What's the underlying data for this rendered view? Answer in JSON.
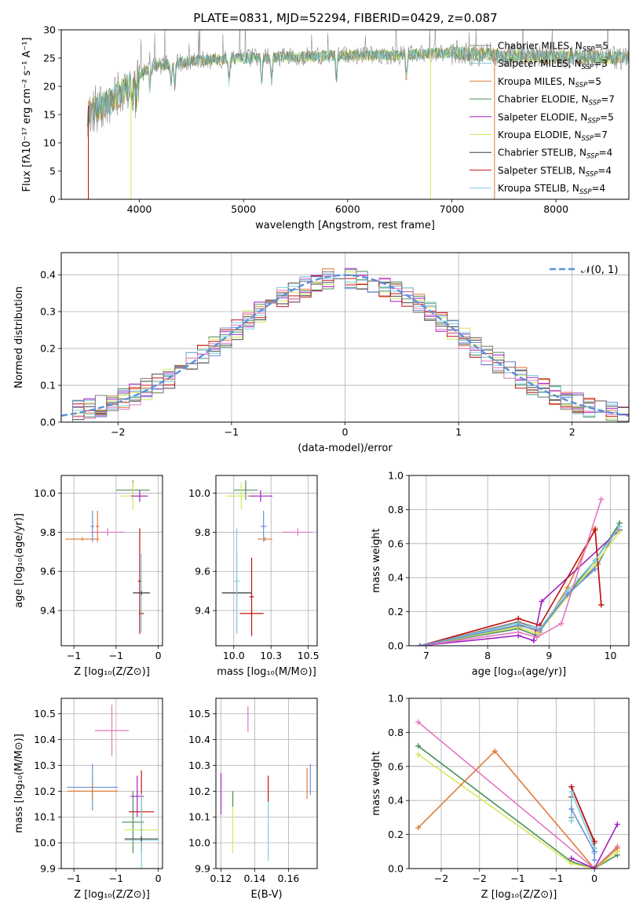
{
  "figure": {
    "title": "PLATE=0831, MJD=52294, FIBERID=0429, z=0.087"
  },
  "colors": {
    "Chabrier MILES": "#808080",
    "Salpeter MILES": "#7fbfbf",
    "Kroupa MILES": "#e07b39",
    "Chabrier ELODIE": "#4f8f5a",
    "Salpeter ELODIE": "#a020c0",
    "Kroupa ELODIE": "#d4e85a",
    "Chabrier STELIB": "#404040",
    "Salpeter STELIB": "#c01010",
    "Kroupa STELIB": "#7fd0dc",
    "extra_pink": "#e377c2",
    "extra_blue": "#6b8fd6",
    "gaussian": "#5b8fd9"
  },
  "chart_data": [
    {
      "id": "spectrum",
      "type": "line",
      "title": "PLATE=0831, MJD=52294, FIBERID=0429, z=0.087",
      "xlabel": "wavelength [Angstrom, rest frame]",
      "ylabel": "Flux [fλ10⁻¹⁷ erg cm⁻² s⁻¹ A⁻¹]",
      "xlim": [
        3250,
        8700
      ],
      "ylim": [
        0,
        30
      ],
      "xticks": [
        4000,
        5000,
        6000,
        7000,
        8000
      ],
      "yticks": [
        0,
        5,
        10,
        15,
        20,
        25,
        30
      ],
      "grid": false,
      "legend_position": "right",
      "legend": [
        {
          "label": "Chabrier MILES, N",
          "sub": "SSP",
          "tail": "=5",
          "color": "#808080"
        },
        {
          "label": "Salpeter MILES, N",
          "sub": "SSP",
          "tail": "=3",
          "color": "#7fbfbf"
        },
        {
          "label": "Kroupa MILES, N",
          "sub": "SSP",
          "tail": "=5",
          "color": "#e07b39"
        },
        {
          "label": "Chabrier ELODIE, N",
          "sub": "SSP",
          "tail": "=7",
          "color": "#4f8f5a"
        },
        {
          "label": "Salpeter ELODIE, N",
          "sub": "SSP",
          "tail": "=5",
          "color": "#a020c0"
        },
        {
          "label": "Kroupa ELODIE, N",
          "sub": "SSP",
          "tail": "=7",
          "color": "#d4e85a"
        },
        {
          "label": "Chabrier STELIB, N",
          "sub": "SSP",
          "tail": "=4",
          "color": "#404040"
        },
        {
          "label": "Salpeter STELIB, N",
          "sub": "SSP",
          "tail": "=4",
          "color": "#c01010"
        },
        {
          "label": "Kroupa STELIB, N",
          "sub": "SSP",
          "tail": "=4",
          "color": "#7fd0dc"
        }
      ],
      "continuum": [
        [
          3500,
          15.5
        ],
        [
          3700,
          17
        ],
        [
          3900,
          20
        ],
        [
          4100,
          23.5
        ],
        [
          4500,
          24.5
        ],
        [
          5000,
          25
        ],
        [
          5500,
          25.2
        ],
        [
          6000,
          25.5
        ],
        [
          6500,
          25.5
        ],
        [
          7000,
          26
        ],
        [
          7400,
          25.5
        ],
        [
          8000,
          25.2
        ],
        [
          8700,
          25
        ]
      ],
      "absorption_lines": [
        3934,
        3969,
        4102,
        4304,
        4341,
        4861,
        5175,
        5270,
        5892,
        6563
      ],
      "edges": [
        {
          "x": 3510,
          "color": "#c01010"
        },
        {
          "x": 3920,
          "color": "#d4e85a"
        },
        {
          "x": 6795,
          "color": "#d4e85a"
        },
        {
          "x": 7410,
          "color": "#e07b39"
        }
      ]
    },
    {
      "id": "residuals",
      "type": "line",
      "xlabel": "(data-model)/error",
      "ylabel": "Normed distribution",
      "xlim": [
        -2.5,
        2.5
      ],
      "ylim": [
        0,
        0.46
      ],
      "xticks": [
        -2,
        -1,
        0,
        1,
        2
      ],
      "yticks": [
        0,
        0.1,
        0.2,
        0.3,
        0.4
      ],
      "grid": true,
      "legend": [
        {
          "label": "𝒩(0, 1)",
          "style": "dashed",
          "color": "#5b8fd9"
        }
      ],
      "gaussian": {
        "mean": 0,
        "sigma": 1
      },
      "bins": {
        "start": -2.5,
        "width": 0.1
      }
    },
    {
      "id": "age-vs-Z",
      "type": "scatter",
      "xlabel": "Z [log₁₀(Z/Z⊙)]",
      "ylabel": "age  [log₁₀(age/yr)]",
      "xlim": [
        -1.15,
        0.05
      ],
      "ylim": [
        9.22,
        10.09
      ],
      "xticks": [
        -1.0,
        -0.5,
        0.0
      ],
      "yticks": [
        9.4,
        9.6,
        9.8,
        10.0
      ],
      "grid": true,
      "points": [
        {
          "x": -0.9,
          "xerr": 0.2,
          "y": 9.765,
          "yerr": 0.01,
          "color": "#e07b39"
        },
        {
          "x": -0.6,
          "xerr": 0.2,
          "y": 9.8,
          "yerr": 0.02,
          "color": "#e377c2"
        },
        {
          "x": -0.78,
          "xerr": 0.02,
          "y": 9.83,
          "yerr": 0.08,
          "color": "#6b8fd6"
        },
        {
          "x": -0.72,
          "xerr": 0.02,
          "y": 9.83,
          "yerr": 0.08,
          "color": "#e07b39"
        },
        {
          "x": -0.3,
          "xerr": 0.2,
          "y": 10.015,
          "yerr": 0.05,
          "color": "#4f8f5a"
        },
        {
          "x": -0.3,
          "xerr": 0.15,
          "y": 9.985,
          "yerr": 0.07,
          "color": "#d4e85a"
        },
        {
          "x": -0.22,
          "xerr": 0.1,
          "y": 9.985,
          "yerr": 0.03,
          "color": "#a020c0"
        },
        {
          "x": -0.22,
          "xerr": 0.02,
          "y": 9.55,
          "yerr": 0.27,
          "color": "#c01010"
        },
        {
          "x": -0.2,
          "xerr": 0.03,
          "y": 9.385,
          "yerr": 0.01,
          "color": "#c01010"
        },
        {
          "x": -0.2,
          "xerr": 0.1,
          "y": 9.49,
          "yerr": 0.2,
          "color": "#7fd0dc"
        },
        {
          "x": -0.2,
          "xerr": 0.1,
          "y": 9.49,
          "yerr": 0.01,
          "color": "#404040"
        }
      ]
    },
    {
      "id": "age-vs-mass",
      "type": "scatter",
      "xlabel": "mass [log₁₀(M/M⊙)]",
      "ylabel": "",
      "xlim": [
        9.88,
        10.56
      ],
      "ylim": [
        9.22,
        10.09
      ],
      "xticks": [
        10.0,
        10.25,
        10.5
      ],
      "yticks": [
        9.4,
        9.6,
        9.8,
        10.0
      ],
      "grid": true,
      "points": [
        {
          "x": 10.02,
          "xerr": 0.1,
          "y": 9.49,
          "yerr": 0.2,
          "color": "#6b8fd6"
        },
        {
          "x": 10.02,
          "xerr": 0.1,
          "y": 9.49,
          "yerr": 0.01,
          "color": "#404040"
        },
        {
          "x": 10.02,
          "xerr": 0.02,
          "y": 9.55,
          "yerr": 0.27,
          "color": "#7fd0dc"
        },
        {
          "x": 10.08,
          "xerr": 0.08,
          "y": 10.015,
          "yerr": 0.05,
          "color": "#4f8f5a"
        },
        {
          "x": 10.05,
          "xerr": 0.1,
          "y": 9.985,
          "yerr": 0.07,
          "color": "#d4e85a"
        },
        {
          "x": 10.18,
          "xerr": 0.08,
          "y": 9.985,
          "yerr": 0.03,
          "color": "#a020c0"
        },
        {
          "x": 10.12,
          "xerr": 0.015,
          "y": 9.47,
          "yerr": 0.2,
          "color": "#c01010"
        },
        {
          "x": 10.12,
          "xerr": 0.08,
          "y": 9.385,
          "yerr": 0.01,
          "color": "#c01010"
        },
        {
          "x": 10.2,
          "xerr": 0.02,
          "y": 9.83,
          "yerr": 0.08,
          "color": "#6b8fd6"
        },
        {
          "x": 10.21,
          "xerr": 0.05,
          "y": 9.765,
          "yerr": 0.01,
          "color": "#e07b39"
        },
        {
          "x": 10.43,
          "xerr": 0.1,
          "y": 9.8,
          "yerr": 0.02,
          "color": "#e377c2"
        }
      ]
    },
    {
      "id": "weight-vs-age",
      "type": "line",
      "xlabel": "age  [log₁₀(age/yr)]",
      "ylabel": "mass weight",
      "xlim": [
        6.72,
        10.3
      ],
      "ylim": [
        0,
        1
      ],
      "xticks": [
        7,
        8,
        9,
        10
      ],
      "yticks": [
        0,
        0.2,
        0.4,
        0.6,
        0.8,
        1.0
      ],
      "grid": true,
      "series": [
        {
          "color": "#808080",
          "x": [
            6.9,
            8.5,
            8.85,
            9.3,
            9.8,
            10.15
          ],
          "y": [
            0.0,
            0.14,
            0.1,
            0.3,
            0.48,
            0.72
          ]
        },
        {
          "color": "#e07b39",
          "x": [
            6.9,
            8.55,
            8.85,
            9.3,
            9.75,
            9.85
          ],
          "y": [
            0.0,
            0.12,
            0.08,
            0.34,
            0.69,
            0.24
          ]
        },
        {
          "color": "#4f8f5a",
          "x": [
            6.9,
            8.5,
            8.8,
            9.3,
            9.75,
            10.15
          ],
          "y": [
            0.0,
            0.1,
            0.06,
            0.3,
            0.5,
            0.72
          ]
        },
        {
          "color": "#a020c0",
          "x": [
            6.9,
            8.5,
            8.75,
            8.88,
            10.15
          ],
          "y": [
            0.0,
            0.06,
            0.03,
            0.26,
            0.68
          ]
        },
        {
          "color": "#d4e85a",
          "x": [
            6.9,
            8.5,
            8.82,
            9.3,
            9.75,
            10.15
          ],
          "y": [
            0.0,
            0.11,
            0.07,
            0.29,
            0.48,
            0.67
          ]
        },
        {
          "color": "#c01010",
          "x": [
            6.9,
            8.5,
            8.85,
            9.75,
            9.85
          ],
          "y": [
            0.0,
            0.16,
            0.12,
            0.68,
            0.24
          ]
        },
        {
          "color": "#7fd0dc",
          "x": [
            6.9,
            8.5,
            8.85,
            9.3,
            9.75,
            10.15
          ],
          "y": [
            0.0,
            0.13,
            0.1,
            0.32,
            0.5,
            0.7
          ]
        },
        {
          "color": "#e377c2",
          "x": [
            6.9,
            8.5,
            8.8,
            9.2,
            9.85
          ],
          "y": [
            0.0,
            0.08,
            0.05,
            0.13,
            0.86
          ]
        },
        {
          "color": "#6b8fd6",
          "x": [
            6.9,
            8.5,
            8.85,
            9.3,
            9.75
          ],
          "y": [
            0.0,
            0.12,
            0.09,
            0.3,
            0.45
          ]
        }
      ]
    },
    {
      "id": "mass-vs-Z",
      "type": "scatter",
      "xlabel": "Z [log₁₀(Z/Z⊙)]",
      "ylabel": "mass [log₁₀(M/M⊙)]",
      "xlim": [
        -1.15,
        0.05
      ],
      "ylim": [
        9.9,
        10.56
      ],
      "xticks": [
        -1.0,
        -0.5,
        0.0
      ],
      "yticks": [
        9.9,
        10.0,
        10.1,
        10.2,
        10.3,
        10.4,
        10.5
      ],
      "grid": true,
      "points": [
        {
          "x": -0.55,
          "xerr": 0.2,
          "y": 10.435,
          "yerr": 0.1,
          "color": "#e377c2"
        },
        {
          "x": -0.78,
          "xerr": 0.3,
          "y": 10.215,
          "yerr": 0.09,
          "color": "#6b8fd6"
        },
        {
          "x": -0.78,
          "xerr": 0.3,
          "y": 10.2,
          "yerr": 0.03,
          "color": "#e07b39"
        },
        {
          "x": -0.3,
          "xerr": 0.13,
          "y": 10.08,
          "yerr": 0.12,
          "color": "#4f8f5a"
        },
        {
          "x": -0.25,
          "xerr": 0.08,
          "y": 10.18,
          "yerr": 0.08,
          "color": "#a020c0"
        },
        {
          "x": -0.2,
          "xerr": 0.2,
          "y": 10.05,
          "yerr": 0.1,
          "color": "#d4e85a"
        },
        {
          "x": -0.2,
          "xerr": 0.15,
          "y": 10.12,
          "yerr": 0.16,
          "color": "#c01010"
        },
        {
          "x": -0.2,
          "xerr": 0.2,
          "y": 10.01,
          "yerr": 0.18,
          "color": "#7fd0dc"
        },
        {
          "x": -0.2,
          "xerr": 0.2,
          "y": 10.015,
          "yerr": 0.01,
          "color": "#404040"
        }
      ]
    },
    {
      "id": "mass-vs-EBV",
      "type": "scatter",
      "xlabel": "E(B-V)",
      "ylabel": "",
      "xlim": [
        0.117,
        0.177
      ],
      "ylim": [
        9.9,
        10.56
      ],
      "xticks": [
        0.12,
        0.14,
        0.16
      ],
      "yticks": [
        9.9,
        10.0,
        10.1,
        10.2,
        10.3,
        10.4,
        10.5
      ],
      "grid": true,
      "points": [
        {
          "x": 0.136,
          "xerr": 0,
          "y": 10.48,
          "yerr": 0.05,
          "color": "#e377c2"
        },
        {
          "x": 0.173,
          "xerr": 0,
          "y": 10.245,
          "yerr": 0.06,
          "color": "#6b8fd6"
        },
        {
          "x": 0.171,
          "xerr": 0,
          "y": 10.23,
          "yerr": 0.06,
          "color": "#e07b39"
        },
        {
          "x": 0.12,
          "xerr": 0,
          "y": 10.19,
          "yerr": 0.08,
          "color": "#a020c0"
        },
        {
          "x": 0.127,
          "xerr": 0,
          "y": 10.08,
          "yerr": 0.12,
          "color": "#d4e85a"
        },
        {
          "x": 0.127,
          "xerr": 0,
          "y": 10.17,
          "yerr": 0.03,
          "color": "#4f8f5a"
        },
        {
          "x": 0.148,
          "xerr": 0,
          "y": 10.06,
          "yerr": 0.13,
          "color": "#7fd0dc"
        },
        {
          "x": 0.148,
          "xerr": 0,
          "y": 10.21,
          "yerr": 0.05,
          "color": "#c01010"
        }
      ]
    },
    {
      "id": "weight-vs-Z",
      "type": "line",
      "xlabel": "Z [log₁₀(Z/Z⊙)]",
      "ylabel": "mass weight",
      "xlim": [
        -2.42,
        0.45
      ],
      "ylim": [
        0,
        1
      ],
      "xticks": [
        -2.0,
        -1.5,
        -1.0,
        -0.5,
        0.0
      ],
      "yticks": [
        0,
        0.2,
        0.4,
        0.6,
        0.8,
        1.0
      ],
      "grid": true,
      "series": [
        {
          "color": "#e377c2",
          "x": [
            -2.3,
            0.0,
            0.3
          ],
          "y": [
            0.86,
            0.0,
            0.13
          ]
        },
        {
          "color": "#4f8f5a",
          "x": [
            -2.3,
            -0.3,
            0.0,
            0.3
          ],
          "y": [
            0.72,
            0.04,
            0.0,
            0.08
          ]
        },
        {
          "color": "#d4e85a",
          "x": [
            -2.3,
            -0.3,
            0.0,
            0.3
          ],
          "y": [
            0.67,
            0.03,
            0.0,
            0.1
          ]
        },
        {
          "color": "#e07b39",
          "x": [
            -2.3,
            -1.3,
            0.0,
            0.3
          ],
          "y": [
            0.24,
            0.69,
            0.0,
            0.12
          ]
        },
        {
          "color": "#a020c0",
          "x": [
            -0.3,
            0.0,
            0.3
          ],
          "y": [
            0.06,
            0.0,
            0.26
          ]
        },
        {
          "color": "#808080",
          "x": [
            -0.3,
            -0.3,
            0.0,
            0.0
          ],
          "y": [
            0.3,
            0.48,
            0.15,
            0.1
          ]
        },
        {
          "color": "#c01010",
          "x": [
            -0.3,
            -0.3,
            0.0,
            0.0
          ],
          "y": [
            0.42,
            0.48,
            0.16,
            0.12
          ]
        },
        {
          "color": "#7fd0dc",
          "x": [
            -0.3,
            -0.3,
            0.0,
            0.0
          ],
          "y": [
            0.28,
            0.45,
            0.12,
            0.09
          ]
        },
        {
          "color": "#6b8fd6",
          "x": [
            -0.3,
            0.0,
            0.0
          ],
          "y": [
            0.35,
            0.1,
            0.05
          ]
        }
      ]
    }
  ]
}
